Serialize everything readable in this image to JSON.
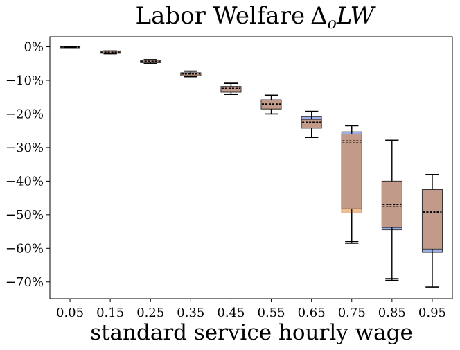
{
  "chart_data": {
    "type": "box",
    "title": "Labor Welfare",
    "title_math": "Δ",
    "title_math_sub": "o",
    "title_math_tail": "LW",
    "xlabel": "standard service hourly wage",
    "ylabel": "",
    "ylim": [
      -75,
      3
    ],
    "yticks": [
      0,
      -10,
      -20,
      -30,
      -40,
      -50,
      -60,
      -70
    ],
    "ytick_labels": [
      "0%",
      "−10%",
      "−20%",
      "−30%",
      "−40%",
      "−50%",
      "−60%",
      "−70%"
    ],
    "categories": [
      "0.05",
      "0.15",
      "0.25",
      "0.35",
      "0.45",
      "0.55",
      "0.65",
      "0.75",
      "0.85",
      "0.95"
    ],
    "series": [
      {
        "name": "blue",
        "color": "#4a6bd6",
        "boxes": [
          {
            "whislo": -0.2,
            "q1": -0.2,
            "med": -0.1,
            "q3": 0.0,
            "whishi": 0.1
          },
          {
            "whislo": -2.0,
            "q1": -1.9,
            "med": -1.6,
            "q3": -1.2,
            "whishi": -1.2
          },
          {
            "whislo": -5.0,
            "q1": -4.7,
            "med": -4.3,
            "q3": -3.9,
            "whishi": -3.8
          },
          {
            "whislo": -8.9,
            "q1": -8.6,
            "med": -8.0,
            "q3": -7.7,
            "whishi": -7.2
          },
          {
            "whislo": -14.2,
            "q1": -13.5,
            "med": -12.3,
            "q3": -11.8,
            "whishi": -10.8
          },
          {
            "whislo": -20.0,
            "q1": -18.5,
            "med": -17.0,
            "q3": -15.8,
            "whishi": -14.4
          },
          {
            "whislo": -27.0,
            "q1": -24.2,
            "med": -22.1,
            "q3": -20.8,
            "whishi": -19.2
          },
          {
            "whislo": -58.5,
            "q1": -48.2,
            "med": -28.0,
            "q3": -25.3,
            "whishi": -23.5
          },
          {
            "whislo": -69.5,
            "q1": -54.5,
            "med": -47.0,
            "q3": -40.0,
            "whishi": -27.8
          },
          {
            "whislo": -71.5,
            "q1": -61.2,
            "med": -49.0,
            "q3": -42.5,
            "whishi": -38.0
          }
        ]
      },
      {
        "name": "orange",
        "color": "#e08a3c",
        "boxes": [
          {
            "whislo": -0.2,
            "q1": -0.2,
            "med": -0.1,
            "q3": 0.0,
            "whishi": 0.1
          },
          {
            "whislo": -2.1,
            "q1": -1.9,
            "med": -1.6,
            "q3": -1.3,
            "whishi": -1.2
          },
          {
            "whislo": -5.0,
            "q1": -4.7,
            "med": -4.4,
            "q3": -4.0,
            "whishi": -3.8
          },
          {
            "whislo": -8.9,
            "q1": -8.6,
            "med": -8.1,
            "q3": -7.8,
            "whishi": -7.3
          },
          {
            "whislo": -14.2,
            "q1": -13.5,
            "med": -12.4,
            "q3": -11.8,
            "whishi": -10.9
          },
          {
            "whislo": -20.0,
            "q1": -18.5,
            "med": -17.2,
            "q3": -15.8,
            "whishi": -14.4
          },
          {
            "whislo": -27.0,
            "q1": -24.2,
            "med": -22.5,
            "q3": -21.6,
            "whishi": -19.2
          },
          {
            "whislo": -58.0,
            "q1": -49.5,
            "med": -28.6,
            "q3": -26.0,
            "whishi": -23.5
          },
          {
            "whislo": -69.0,
            "q1": -53.8,
            "med": -47.6,
            "q3": -40.0,
            "whishi": -27.8
          },
          {
            "whislo": -71.5,
            "q1": -60.2,
            "med": -49.3,
            "q3": -42.5,
            "whishi": -38.0
          }
        ]
      }
    ]
  }
}
